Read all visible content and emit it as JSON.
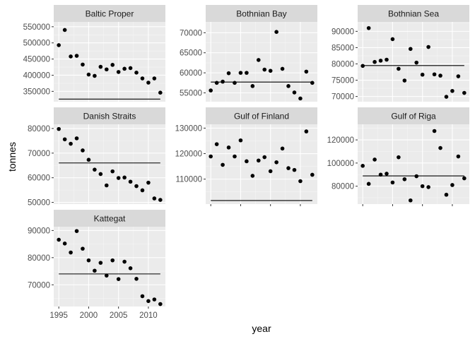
{
  "chart_data": {
    "type": "scatter",
    "xlabel": "year",
    "ylabel": "tonnes",
    "x_ticks": [
      1995,
      2000,
      2005,
      2010
    ],
    "grid": true,
    "colors": {
      "panel_bg": "#ebebeb",
      "strip_bg": "#d9d9d9",
      "grid_major": "#ffffff",
      "grid_minor": "#f5f5f5",
      "point": "#000000",
      "line": "#000000"
    },
    "facets": [
      {
        "name": "Baltic Proper",
        "y_ticks": [
          350000,
          400000,
          450000,
          500000,
          550000
        ],
        "y_tick_labels": [
          "350000",
          "400000",
          "450000",
          "500000",
          "550000"
        ],
        "ylim": [
          318000,
          565000
        ],
        "hline": 326000,
        "x": [
          1995,
          1996,
          1997,
          1998,
          1999,
          2000,
          2001,
          2002,
          2003,
          2004,
          2005,
          2006,
          2007,
          2008,
          2009,
          2010,
          2011,
          2012
        ],
        "y": [
          493000,
          540000,
          458000,
          460000,
          433000,
          402000,
          398000,
          426000,
          418000,
          432000,
          410000,
          420000,
          422000,
          408000,
          390000,
          377000,
          390000,
          346000
        ]
      },
      {
        "name": "Bothnian Bay",
        "y_ticks": [
          55000,
          60000,
          65000,
          70000
        ],
        "y_tick_labels": [
          "55000",
          "60000",
          "65000",
          "70000"
        ],
        "ylim": [
          52800,
          72700
        ],
        "hline": 57700,
        "x": [
          1995,
          1996,
          1997,
          1998,
          1999,
          2000,
          2001,
          2002,
          2003,
          2004,
          2005,
          2006,
          2007,
          2008,
          2009,
          2010,
          2011,
          2012
        ],
        "y": [
          55600,
          57500,
          57800,
          59900,
          57500,
          60000,
          60000,
          56700,
          63200,
          60800,
          60500,
          70200,
          61000,
          56700,
          55100,
          53600,
          60300,
          57500
        ]
      },
      {
        "name": "Bothnian Sea",
        "y_ticks": [
          70000,
          75000,
          80000,
          85000,
          90000
        ],
        "y_tick_labels": [
          "70000",
          "75000",
          "80000",
          "85000",
          "90000"
        ],
        "ylim": [
          68400,
          92900
        ],
        "hline": 79500,
        "x": [
          1995,
          1996,
          1997,
          1998,
          1999,
          2000,
          2001,
          2002,
          2003,
          2004,
          2005,
          2006,
          2007,
          2008,
          2009,
          2010,
          2011,
          2012
        ],
        "y": [
          79400,
          91000,
          80600,
          81000,
          81300,
          87600,
          78500,
          74900,
          84600,
          80400,
          76700,
          85200,
          76800,
          76400,
          69900,
          71700,
          76200,
          71100
        ]
      },
      {
        "name": "Danish Straits",
        "y_ticks": [
          50000,
          60000,
          70000,
          80000
        ],
        "y_tick_labels": [
          "50000",
          "60000",
          "70000",
          "80000"
        ],
        "ylim": [
          49300,
          81700
        ],
        "hline": 66000,
        "x": [
          1995,
          1996,
          1997,
          1998,
          1999,
          2000,
          2001,
          2002,
          2003,
          2004,
          2005,
          2006,
          2007,
          2008,
          2009,
          2010,
          2011,
          2012
        ],
        "y": [
          79800,
          75600,
          73800,
          76000,
          71100,
          67300,
          63300,
          61500,
          56900,
          62600,
          59900,
          60100,
          58400,
          56600,
          54900,
          58000,
          51600,
          51000
        ]
      },
      {
        "name": "Gulf of Finland",
        "y_ticks": [
          110000,
          120000,
          130000
        ],
        "y_tick_labels": [
          "110000",
          "120000",
          "130000"
        ],
        "ylim": [
          100200,
          131500
        ],
        "hline": 101600,
        "x": [
          1995,
          1996,
          1997,
          1998,
          1999,
          2000,
          2001,
          2002,
          2003,
          2004,
          2005,
          2006,
          2007,
          2008,
          2009,
          2010,
          2011,
          2012
        ],
        "y": [
          118900,
          123700,
          115600,
          122400,
          118900,
          125200,
          117000,
          111300,
          117300,
          118600,
          113100,
          116600,
          122000,
          114300,
          113600,
          109200,
          128700,
          111700
        ]
      },
      {
        "name": "Gulf of Riga",
        "y_ticks": [
          80000,
          100000,
          120000
        ],
        "y_tick_labels": [
          "80000",
          "100000",
          "120000"
        ],
        "ylim": [
          64500,
          133500
        ],
        "hline": 88900,
        "x": [
          1995,
          1996,
          1997,
          1998,
          1999,
          2000,
          2001,
          2002,
          2003,
          2004,
          2005,
          2006,
          2007,
          2008,
          2009,
          2010,
          2011,
          2012
        ],
        "y": [
          97600,
          82000,
          103000,
          90000,
          90800,
          83200,
          105000,
          86000,
          67700,
          88600,
          80000,
          79200,
          127700,
          113000,
          72600,
          81000,
          105700,
          86800
        ]
      },
      {
        "name": "Kattegat",
        "y_ticks": [
          70000,
          80000,
          90000
        ],
        "y_tick_labels": [
          "70000",
          "80000",
          "90000"
        ],
        "ylim": [
          62000,
          91400
        ],
        "hline": 74000,
        "x": [
          1995,
          1996,
          1997,
          1998,
          1999,
          2000,
          2001,
          2002,
          2003,
          2004,
          2005,
          2006,
          2007,
          2008,
          2009,
          2010,
          2011,
          2012
        ],
        "y": [
          86600,
          85200,
          81900,
          89800,
          83300,
          79000,
          75200,
          78100,
          73400,
          79000,
          72100,
          78500,
          76100,
          72200,
          65800,
          64000,
          64600,
          62900
        ]
      }
    ]
  }
}
